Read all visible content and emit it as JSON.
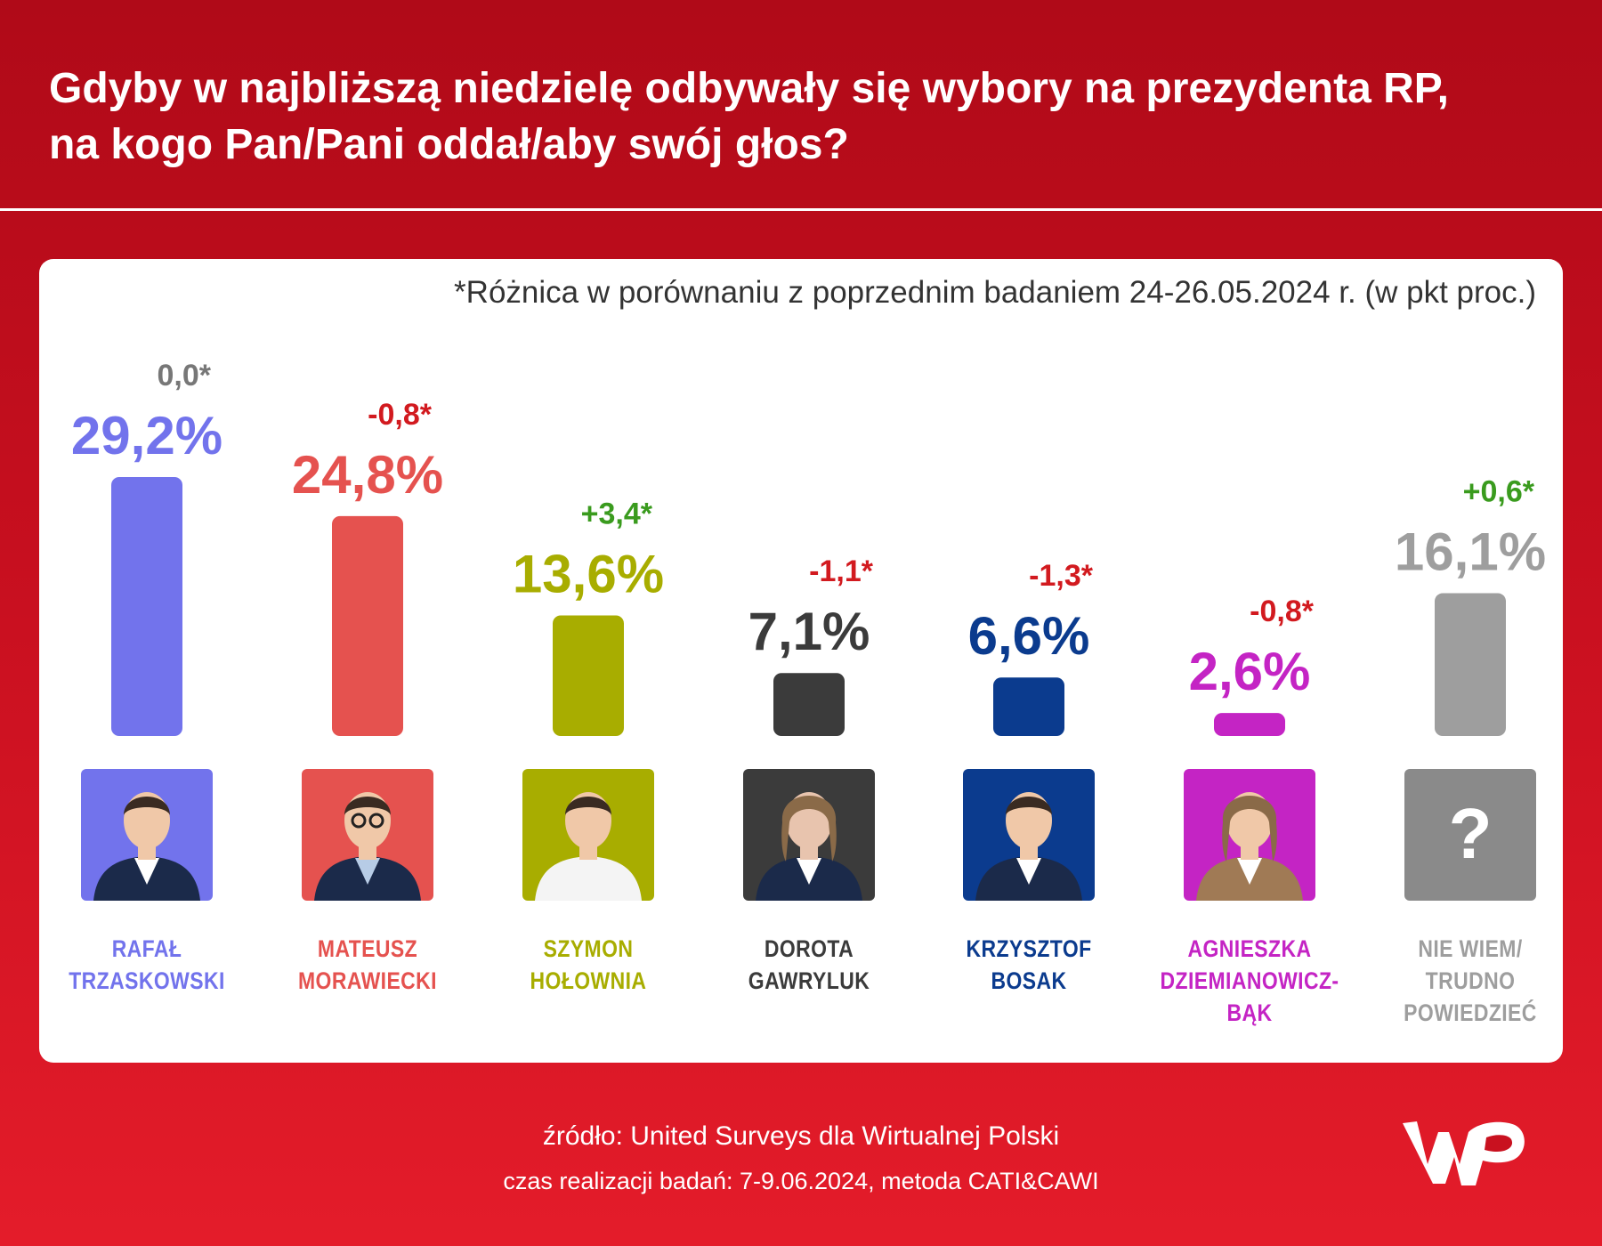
{
  "title": {
    "line1": "Gdyby w najbliższą niedzielę odbywały się wybory na prezydenta RP,",
    "line2": "na kogo Pan/Pani oddał/aby swój głos?"
  },
  "note": "*Różnica w porównaniu z poprzednim badaniem 24-26.05.2024 r. (w pkt proc.)",
  "footer": {
    "source": "źródło: United Surveys dla Wirtualnej Polski",
    "method": "czas realizacji badań: 7-9.06.2024, metoda CATI&CAWI"
  },
  "logo_text": "WP",
  "chart_data": {
    "type": "bar",
    "title": "Gdyby w najbliższą niedzielę odbywały się wybory na prezydenta RP, na kogo Pan/Pani oddał/aby swój głos?",
    "unit": "%",
    "categories": [
      "RAFAŁ TRZASKOWSKI",
      "MATEUSZ MORAWIECKI",
      "SZYMON HOŁOWNIA",
      "DOROTA GAWRYLUK",
      "KRZYSZTOF BOSAK",
      "AGNIESZKA DZIEMIANOWICZ-BĄK",
      "NIE WIEM/ TRUDNO POWIEDZIEĆ"
    ],
    "values": [
      29.2,
      24.8,
      13.6,
      7.1,
      6.6,
      2.6,
      16.1
    ],
    "items": [
      {
        "first": "RAFAŁ",
        "last": "TRZASKOWSKI",
        "value": 29.2,
        "value_label": "29,2%",
        "change": 0.0,
        "change_label": "0,0*",
        "color": "#7273ec",
        "change_color": "#777777",
        "photo": "person-photo"
      },
      {
        "first": "MATEUSZ",
        "last": "MORAWIECKI",
        "value": 24.8,
        "value_label": "24,8%",
        "change": -0.8,
        "change_label": "-0,8*",
        "color": "#e5524f",
        "change_color": "#d21a1f",
        "photo": "person-photo"
      },
      {
        "first": "SZYMON",
        "last": "HOŁOWNIA",
        "value": 13.6,
        "value_label": "13,6%",
        "change": 3.4,
        "change_label": "+3,4*",
        "color": "#a8ad00",
        "change_color": "#3a9b1e",
        "photo": "person-photo"
      },
      {
        "first": "DOROTA",
        "last": "GAWRYLUK",
        "value": 7.1,
        "value_label": "7,1%",
        "change": -1.1,
        "change_label": "-1,1*",
        "color": "#3b3b3b",
        "change_color": "#d21a1f",
        "photo": "person-photo"
      },
      {
        "first": "KRZYSZTOF",
        "last": "BOSAK",
        "value": 6.6,
        "value_label": "6,6%",
        "change": -1.3,
        "change_label": "-1,3*",
        "color": "#0b3b8e",
        "change_color": "#d21a1f",
        "photo": "person-photo"
      },
      {
        "first": "AGNIESZKA",
        "last": "DZIEMIANOWICZ-BĄK",
        "value": 2.6,
        "value_label": "2,6%",
        "change": -0.8,
        "change_label": "-0,8*",
        "color": "#c424c4",
        "change_color": "#d21a1f",
        "photo": "person-photo"
      },
      {
        "first": "NIE WIEM/",
        "last": "TRUDNO",
        "extra": "POWIEDZIEĆ",
        "value": 16.1,
        "value_label": "16,1%",
        "change": 0.6,
        "change_label": "+0,6*",
        "color": "#9e9e9e",
        "change_color": "#3a9b1e",
        "photo": "question-mark-placeholder",
        "question_mark": "?"
      }
    ]
  },
  "colors": {
    "background_top": "#b00a18",
    "background_bottom": "#e41c2a",
    "card": "#ffffff",
    "note_text": "#333333"
  }
}
